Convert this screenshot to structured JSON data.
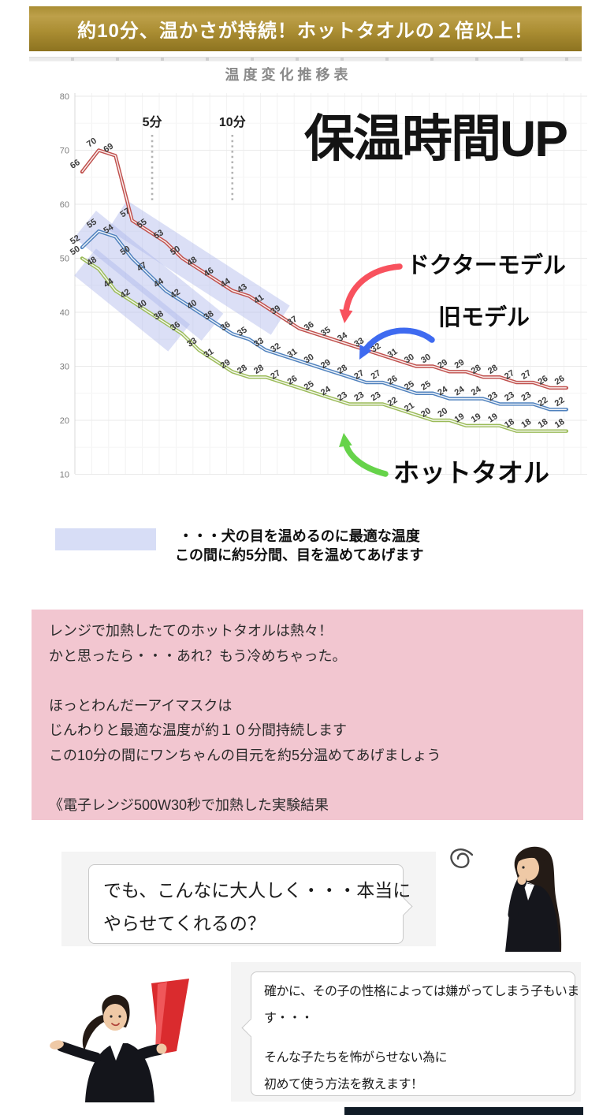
{
  "colors": {
    "banner_gold_top": "#bda04a",
    "banner_gold_bottom": "#8d7320",
    "pink_box_bg": "#f2c6d0",
    "band_fill": "#aab5eb",
    "legend_swatch": "#d7ddf6",
    "series_red": "#c0504d",
    "series_blue": "#4f81bd",
    "series_green": "#9bbb59",
    "arrow_red": "#f8525e",
    "arrow_blue": "#3e6af0",
    "arrow_green": "#66d34a"
  },
  "banner": {
    "text": "約10分、温かさが持続！ホットタオルの２倍以上！"
  },
  "chart_data": {
    "type": "line",
    "title": "温度変化推移表",
    "xlabel": "",
    "ylabel": "",
    "ylim": [
      10,
      80
    ],
    "yticks": [
      80,
      70,
      60,
      50,
      40,
      30,
      20,
      10
    ],
    "grid": true,
    "series": [
      {
        "name": "ドクターモデル",
        "color": "#c0504d",
        "values": [
          66,
          70,
          69,
          57,
          55,
          53,
          50,
          48,
          46,
          44,
          43,
          41,
          39,
          37,
          36,
          35,
          34,
          33,
          32,
          31,
          30,
          30,
          29,
          29,
          28,
          28,
          27,
          27,
          26,
          26
        ]
      },
      {
        "name": "旧モデル",
        "color": "#4f81bd",
        "values": [
          52,
          55,
          54,
          50,
          47,
          44,
          42,
          40,
          38,
          36,
          35,
          33,
          32,
          31,
          30,
          29,
          28,
          27,
          27,
          26,
          25,
          25,
          24,
          24,
          24,
          23,
          23,
          23,
          22,
          22
        ]
      },
      {
        "name": "ホットタオル",
        "color": "#9bbb59",
        "values": [
          50,
          48,
          44,
          42,
          40,
          38,
          36,
          33,
          31,
          29,
          28,
          28,
          27,
          26,
          25,
          24,
          23,
          23,
          23,
          22,
          21,
          20,
          20,
          19,
          19,
          19,
          18,
          18,
          18,
          18
        ]
      }
    ],
    "time_markers": [
      {
        "label": "5分",
        "x_index": 4.2
      },
      {
        "label": "10分",
        "x_index": 9.0
      }
    ],
    "optimal_bands": [
      {
        "series_index": 0,
        "from_index": 3,
        "to_index": 11
      },
      {
        "series_index": 1,
        "from_index": 1,
        "to_index": 7
      },
      {
        "series_index": 2,
        "from_index": 1,
        "to_index": 5
      }
    ],
    "annotations": {
      "headline": "保温時間UP"
    }
  },
  "legend": {
    "line1": "・・・犬の目を温めるのに最適な温度",
    "line2": "この間に約5分間、目を温めてあげます"
  },
  "pink_box": {
    "lines": [
      "レンジで加熱したてのホットタオルは熱々！",
      "かと思ったら・・・あれ？もう冷めちゃった。",
      "",
      "ほっとわんだーアイマスクは",
      "じんわりと最適な温度が約１０分間持続します",
      "この10分の間にワンちゃんの目元を約5分温めてあげましょう",
      "",
      "《電子レンジ500W30秒で加熱した実験結果"
    ]
  },
  "qa": {
    "question": {
      "line1": "でも、こんなに大人しく・・・本当に",
      "line2": "やらせてくれるの？"
    },
    "answer": {
      "line1": "確かに、その子の性格によっては嫌がってしまう子もいま",
      "line2": "す・・・",
      "line3": "そんな子たちを怖がらせない為に",
      "line4": "初めて使う方法を教えます！"
    }
  }
}
